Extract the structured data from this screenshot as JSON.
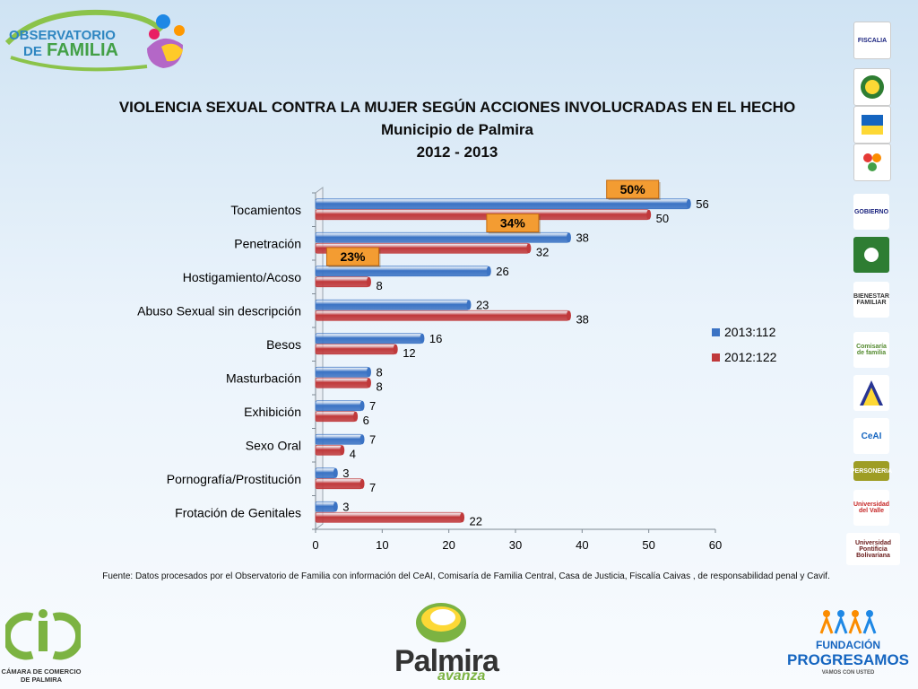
{
  "header": {
    "logo_line1": "OBSERVATORIO",
    "logo_line2": "DE",
    "logo_line3": "FAMILIA",
    "title": "VIOLENCIA SEXUAL CONTRA LA MUJER SEGÚN ACCIONES INVOLUCRADAS EN EL HECHO",
    "subtitle": "Municipio de Palmira",
    "period": "2012 - 2013"
  },
  "chart_data": {
    "type": "bar",
    "orientation": "horizontal",
    "categories": [
      "Tocamientos",
      "Penetración",
      "Hostigamiento/Acoso",
      "Abuso Sexual sin descripción",
      "Besos",
      "Masturbación",
      "Exhibición",
      "Sexo Oral",
      "Pornografía/Prostitución",
      "Frotación de Genitales"
    ],
    "series": [
      {
        "name": "2013:112",
        "color": "#3b73c4",
        "values": [
          56,
          38,
          26,
          23,
          16,
          8,
          7,
          7,
          3,
          3
        ]
      },
      {
        "name": "2012:122",
        "color": "#c0393b",
        "values": [
          50,
          32,
          8,
          38,
          12,
          8,
          6,
          4,
          7,
          22
        ]
      }
    ],
    "xlim": [
      0,
      60
    ],
    "xticks": [
      0,
      10,
      20,
      30,
      40,
      50,
      60
    ],
    "grid": false,
    "legend_position": "right",
    "callouts": [
      {
        "label": "50%",
        "category": "Tocamientos"
      },
      {
        "label": "34%",
        "category": "Penetración"
      },
      {
        "label": "23%",
        "category": "Hostigamiento/Acoso"
      }
    ]
  },
  "source": "Fuente: Datos procesados por el Observatorio de  Familia con información del CeAI, Comisaría de Familia Central, Casa de Justicia, Fiscalía Caivas , de responsabilidad penal y Cavif.",
  "side_logos": [
    "FISCALIA",
    "",
    "",
    "",
    "GOBIERNO",
    "",
    "BIENESTAR FAMILIAR",
    "Comisaría de familia",
    "",
    "CeAI",
    "PERSONERIA",
    "Universidad del Valle",
    "Universidad Pontificia Bolivariana"
  ],
  "footer": {
    "camara": "CÁMARA DE COMERCIO DE PALMIRA",
    "palmira": "Palmira",
    "palmira_sub": "avanza",
    "fundacion": "FUNDACIÓN",
    "progresamos": "PROGRESAMOS",
    "progresamos_tag": "VAMOS CON USTED"
  }
}
